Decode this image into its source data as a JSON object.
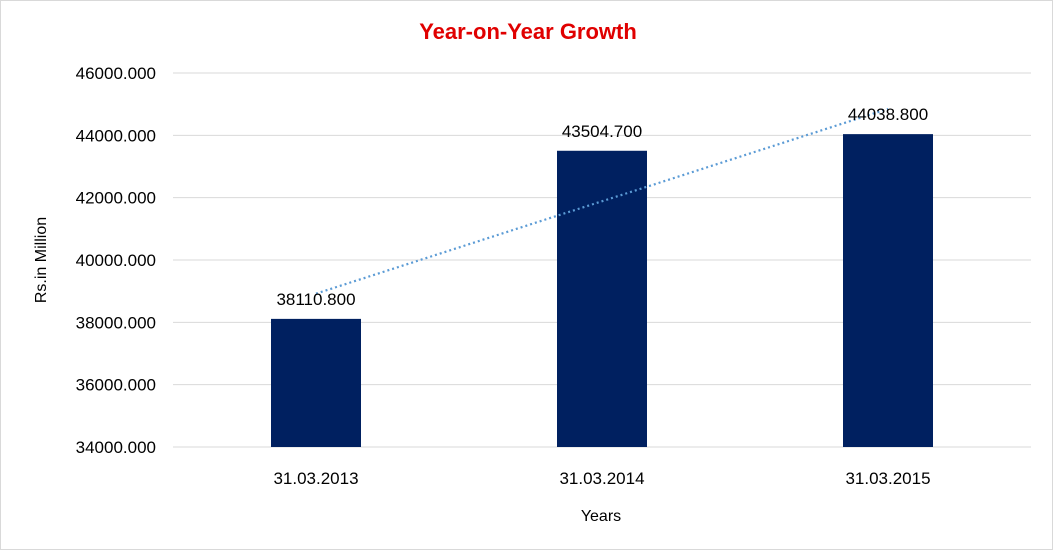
{
  "chart_data": {
    "type": "bar",
    "title": "Year-on-Year Growth",
    "xlabel": "Years",
    "ylabel": "Rs.in Million",
    "categories": [
      "31.03.2013",
      "31.03.2014",
      "31.03.2015"
    ],
    "values": [
      38110.8,
      43504.7,
      44038.8
    ],
    "value_labels": [
      "38110.800",
      "43504.700",
      "44038.800"
    ],
    "ylim": [
      34000,
      46000
    ],
    "yticks": [
      34000,
      36000,
      38000,
      40000,
      42000,
      44000,
      46000
    ],
    "ytick_labels": [
      "34000.000",
      "36000.000",
      "38000.000",
      "40000.000",
      "42000.000",
      "44000.000",
      "46000.000"
    ],
    "grid": true,
    "trendline": "linear (dotted)",
    "legend": "none",
    "colors": {
      "bar": "#002060",
      "trendline": "#5B9BD5",
      "title": "#E00000",
      "grid": "#d9d9d9"
    }
  }
}
